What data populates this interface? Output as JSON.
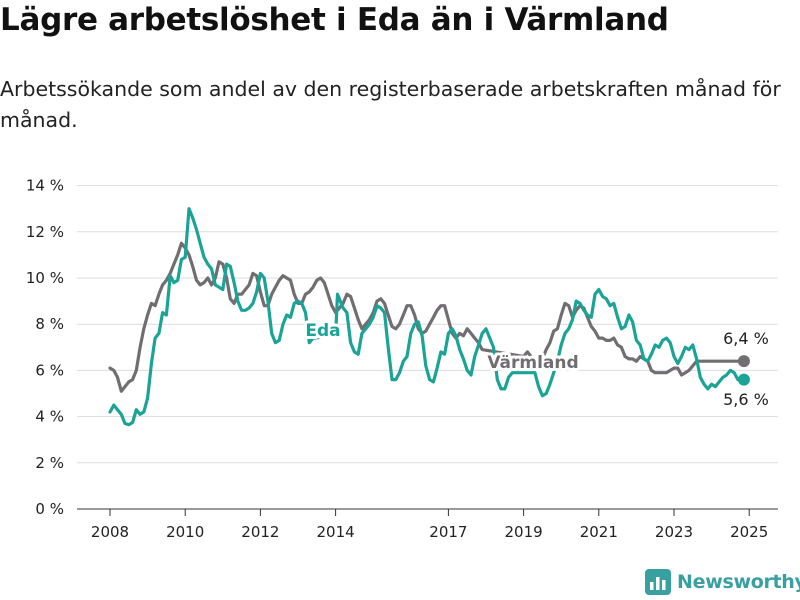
{
  "title": "Lägre arbetslöshet i Eda än i Värmland",
  "subtitle": "Arbetssökande som andel av den registerbaserade arbetskraften månad för månad.",
  "brand": "Newsworthy",
  "colors": {
    "eda": "#1aa397",
    "varmland": "#716e72",
    "grid": "#dddddd",
    "logo": "#39a0a2"
  },
  "chart_data": {
    "type": "line",
    "title": "Lägre arbetslöshet i Eda än i Värmland",
    "xlabel": "",
    "ylabel": "",
    "ylim": [
      0,
      14
    ],
    "xlim": [
      2008,
      2025.5
    ],
    "y_ticks": [
      "0 %",
      "2 %",
      "4 %",
      "6 %",
      "8 %",
      "10 %",
      "12 %",
      "14 %"
    ],
    "x_ticks": [
      "2008",
      "2010",
      "2012",
      "2014",
      "2017",
      "2019",
      "2021",
      "2023",
      "2025"
    ],
    "grid": true,
    "legend": "inline labels",
    "series": [
      {
        "name": "Eda",
        "label": "Eda",
        "end_label": "5,6 %",
        "points": [
          [
            2008.0,
            4.2
          ],
          [
            2008.1,
            4.5
          ],
          [
            2008.2,
            4.3
          ],
          [
            2008.3,
            4.1
          ],
          [
            2008.4,
            3.7
          ],
          [
            2008.5,
            3.65
          ],
          [
            2008.6,
            3.75
          ],
          [
            2008.7,
            4.3
          ],
          [
            2008.8,
            4.1
          ],
          [
            2008.9,
            4.2
          ],
          [
            2009.0,
            4.8
          ],
          [
            2009.1,
            6.3
          ],
          [
            2009.2,
            7.4
          ],
          [
            2009.3,
            7.6
          ],
          [
            2009.4,
            8.5
          ],
          [
            2009.5,
            8.4
          ],
          [
            2009.6,
            10.1
          ],
          [
            2009.7,
            9.8
          ],
          [
            2009.8,
            9.9
          ],
          [
            2009.9,
            10.8
          ],
          [
            2010.0,
            10.9
          ],
          [
            2010.1,
            13.0
          ],
          [
            2010.2,
            12.6
          ],
          [
            2010.3,
            12.1
          ],
          [
            2010.4,
            11.5
          ],
          [
            2010.5,
            10.9
          ],
          [
            2010.6,
            10.6
          ],
          [
            2010.7,
            10.4
          ],
          [
            2010.8,
            9.7
          ],
          [
            2010.9,
            9.6
          ],
          [
            2011.0,
            9.5
          ],
          [
            2011.1,
            10.6
          ],
          [
            2011.2,
            10.5
          ],
          [
            2011.3,
            9.8
          ],
          [
            2011.4,
            9.0
          ],
          [
            2011.5,
            8.6
          ],
          [
            2011.6,
            8.6
          ],
          [
            2011.7,
            8.7
          ],
          [
            2011.8,
            8.9
          ],
          [
            2011.9,
            9.4
          ],
          [
            2012.0,
            10.2
          ],
          [
            2012.1,
            10.0
          ],
          [
            2012.2,
            9.0
          ],
          [
            2012.3,
            7.6
          ],
          [
            2012.4,
            7.2
          ],
          [
            2012.5,
            7.3
          ],
          [
            2012.6,
            8.0
          ],
          [
            2012.7,
            8.4
          ],
          [
            2012.8,
            8.3
          ],
          [
            2012.9,
            8.9
          ],
          [
            2013.0,
            9.0
          ],
          [
            2013.1,
            8.9
          ],
          [
            2013.2,
            8.5
          ],
          [
            2013.3,
            7.2
          ],
          [
            2013.4,
            7.4
          ],
          [
            2014.0,
            7.5
          ],
          [
            2014.05,
            9.3
          ],
          [
            2014.2,
            8.7
          ],
          [
            2014.3,
            8.5
          ],
          [
            2014.4,
            7.2
          ],
          [
            2014.5,
            6.8
          ],
          [
            2014.6,
            6.7
          ],
          [
            2014.7,
            7.6
          ],
          [
            2014.8,
            7.8
          ],
          [
            2014.9,
            8.0
          ],
          [
            2015.0,
            8.3
          ],
          [
            2015.1,
            8.8
          ],
          [
            2015.2,
            8.7
          ],
          [
            2015.3,
            8.5
          ],
          [
            2015.4,
            7.0
          ],
          [
            2015.5,
            5.6
          ],
          [
            2015.6,
            5.6
          ],
          [
            2015.7,
            5.9
          ],
          [
            2015.8,
            6.4
          ],
          [
            2015.9,
            6.6
          ],
          [
            2016.0,
            7.6
          ],
          [
            2016.1,
            8.0
          ],
          [
            2016.2,
            8.1
          ],
          [
            2016.3,
            7.5
          ],
          [
            2016.4,
            6.2
          ],
          [
            2016.5,
            5.6
          ],
          [
            2016.6,
            5.5
          ],
          [
            2016.7,
            6.1
          ],
          [
            2016.8,
            6.8
          ],
          [
            2016.9,
            6.7
          ],
          [
            2017.0,
            7.6
          ],
          [
            2017.1,
            7.8
          ],
          [
            2017.2,
            7.5
          ],
          [
            2017.3,
            6.9
          ],
          [
            2017.4,
            6.5
          ],
          [
            2017.5,
            6.0
          ],
          [
            2017.6,
            5.8
          ],
          [
            2017.7,
            6.6
          ],
          [
            2017.8,
            7.1
          ],
          [
            2017.9,
            7.6
          ],
          [
            2018.0,
            7.8
          ],
          [
            2018.1,
            7.4
          ],
          [
            2018.2,
            7.0
          ],
          [
            2018.3,
            5.6
          ],
          [
            2018.4,
            5.2
          ],
          [
            2018.5,
            5.2
          ],
          [
            2018.6,
            5.7
          ],
          [
            2018.7,
            5.9
          ],
          [
            2019.3,
            5.9
          ],
          [
            2019.4,
            5.3
          ],
          [
            2019.5,
            4.9
          ],
          [
            2019.6,
            5.0
          ],
          [
            2019.7,
            5.4
          ],
          [
            2019.8,
            5.9
          ],
          [
            2019.9,
            6.4
          ],
          [
            2020.0,
            7.1
          ],
          [
            2020.1,
            7.6
          ],
          [
            2020.2,
            7.8
          ],
          [
            2020.3,
            8.2
          ],
          [
            2020.4,
            9.0
          ],
          [
            2020.5,
            8.9
          ],
          [
            2020.6,
            8.6
          ],
          [
            2020.7,
            8.4
          ],
          [
            2020.8,
            8.3
          ],
          [
            2020.9,
            9.3
          ],
          [
            2021.0,
            9.5
          ],
          [
            2021.1,
            9.2
          ],
          [
            2021.2,
            9.1
          ],
          [
            2021.3,
            8.8
          ],
          [
            2021.4,
            8.9
          ],
          [
            2021.5,
            8.3
          ],
          [
            2021.6,
            7.8
          ],
          [
            2021.7,
            7.9
          ],
          [
            2021.8,
            8.4
          ],
          [
            2021.9,
            8.1
          ],
          [
            2022.0,
            7.3
          ],
          [
            2022.1,
            7.1
          ],
          [
            2022.2,
            6.5
          ],
          [
            2022.3,
            6.4
          ],
          [
            2022.4,
            6.7
          ],
          [
            2022.5,
            7.1
          ],
          [
            2022.6,
            7.0
          ],
          [
            2022.7,
            7.3
          ],
          [
            2022.8,
            7.4
          ],
          [
            2022.9,
            7.2
          ],
          [
            2023.0,
            6.6
          ],
          [
            2023.1,
            6.3
          ],
          [
            2023.2,
            6.6
          ],
          [
            2023.3,
            7.0
          ],
          [
            2023.4,
            6.9
          ],
          [
            2023.5,
            7.1
          ],
          [
            2023.6,
            6.5
          ],
          [
            2023.7,
            5.7
          ],
          [
            2023.8,
            5.4
          ],
          [
            2023.9,
            5.2
          ],
          [
            2024.0,
            5.4
          ],
          [
            2024.1,
            5.3
          ],
          [
            2024.2,
            5.5
          ],
          [
            2024.3,
            5.7
          ],
          [
            2024.4,
            5.8
          ],
          [
            2024.5,
            6.0
          ],
          [
            2024.6,
            5.9
          ],
          [
            2024.7,
            5.6
          ]
        ]
      },
      {
        "name": "Värmland",
        "label": "Värmland",
        "end_label": "6,4 %",
        "points": [
          [
            2008.0,
            6.1
          ],
          [
            2008.1,
            6.0
          ],
          [
            2008.2,
            5.7
          ],
          [
            2008.3,
            5.1
          ],
          [
            2008.4,
            5.3
          ],
          [
            2008.5,
            5.5
          ],
          [
            2008.6,
            5.6
          ],
          [
            2008.7,
            6.0
          ],
          [
            2008.8,
            7.0
          ],
          [
            2008.9,
            7.8
          ],
          [
            2009.0,
            8.4
          ],
          [
            2009.1,
            8.9
          ],
          [
            2009.2,
            8.8
          ],
          [
            2009.3,
            9.3
          ],
          [
            2009.4,
            9.7
          ],
          [
            2009.5,
            9.9
          ],
          [
            2009.6,
            10.2
          ],
          [
            2009.7,
            10.6
          ],
          [
            2009.8,
            11.0
          ],
          [
            2009.9,
            11.5
          ],
          [
            2010.0,
            11.3
          ],
          [
            2010.1,
            11.0
          ],
          [
            2010.2,
            10.5
          ],
          [
            2010.3,
            9.9
          ],
          [
            2010.4,
            9.7
          ],
          [
            2010.5,
            9.8
          ],
          [
            2010.6,
            10.0
          ],
          [
            2010.7,
            9.7
          ],
          [
            2010.8,
            10.0
          ],
          [
            2010.9,
            10.7
          ],
          [
            2011.0,
            10.6
          ],
          [
            2011.1,
            10.0
          ],
          [
            2011.2,
            9.1
          ],
          [
            2011.3,
            8.9
          ],
          [
            2011.4,
            9.3
          ],
          [
            2011.5,
            9.3
          ],
          [
            2011.6,
            9.5
          ],
          [
            2011.7,
            9.7
          ],
          [
            2011.8,
            10.2
          ],
          [
            2011.9,
            10.1
          ],
          [
            2012.0,
            9.4
          ],
          [
            2012.1,
            8.8
          ],
          [
            2012.2,
            8.8
          ],
          [
            2012.3,
            9.3
          ],
          [
            2012.4,
            9.6
          ],
          [
            2012.5,
            9.9
          ],
          [
            2012.6,
            10.1
          ],
          [
            2012.7,
            10.0
          ],
          [
            2012.8,
            9.9
          ],
          [
            2012.9,
            9.3
          ],
          [
            2013.0,
            8.9
          ],
          [
            2013.1,
            8.9
          ],
          [
            2013.2,
            9.3
          ],
          [
            2013.3,
            9.4
          ],
          [
            2013.4,
            9.6
          ],
          [
            2013.5,
            9.9
          ],
          [
            2013.6,
            10.0
          ],
          [
            2013.7,
            9.8
          ],
          [
            2013.8,
            9.3
          ],
          [
            2013.9,
            8.8
          ],
          [
            2014.0,
            8.5
          ],
          [
            2014.1,
            8.7
          ],
          [
            2014.2,
            8.9
          ],
          [
            2014.3,
            9.3
          ],
          [
            2014.4,
            9.2
          ],
          [
            2014.5,
            8.7
          ],
          [
            2014.6,
            8.2
          ],
          [
            2014.7,
            7.8
          ],
          [
            2014.8,
            8.0
          ],
          [
            2014.9,
            8.2
          ],
          [
            2015.0,
            8.5
          ],
          [
            2015.1,
            9.0
          ],
          [
            2015.2,
            9.1
          ],
          [
            2015.3,
            8.9
          ],
          [
            2015.4,
            8.4
          ],
          [
            2015.5,
            7.9
          ],
          [
            2015.6,
            7.8
          ],
          [
            2015.7,
            8.0
          ],
          [
            2015.8,
            8.4
          ],
          [
            2015.9,
            8.8
          ],
          [
            2016.0,
            8.8
          ],
          [
            2016.1,
            8.4
          ],
          [
            2016.2,
            7.8
          ],
          [
            2016.3,
            7.6
          ],
          [
            2016.4,
            7.7
          ],
          [
            2016.5,
            8.0
          ],
          [
            2016.6,
            8.3
          ],
          [
            2016.7,
            8.6
          ],
          [
            2016.8,
            8.8
          ],
          [
            2016.9,
            8.8
          ],
          [
            2017.0,
            8.2
          ],
          [
            2017.1,
            7.6
          ],
          [
            2017.2,
            7.4
          ],
          [
            2017.3,
            7.6
          ],
          [
            2017.4,
            7.5
          ],
          [
            2017.5,
            7.8
          ],
          [
            2017.6,
            7.6
          ],
          [
            2017.7,
            7.4
          ],
          [
            2017.8,
            7.2
          ],
          [
            2017.9,
            6.9
          ],
          [
            2019.0,
            6.6
          ],
          [
            2019.1,
            6.8
          ],
          [
            2019.2,
            6.6
          ],
          [
            2019.3,
            6.3
          ],
          [
            2019.4,
            6.3
          ],
          [
            2019.5,
            6.5
          ],
          [
            2019.6,
            6.9
          ],
          [
            2019.7,
            7.2
          ],
          [
            2019.8,
            7.7
          ],
          [
            2019.9,
            7.8
          ],
          [
            2020.0,
            8.4
          ],
          [
            2020.1,
            8.9
          ],
          [
            2020.2,
            8.8
          ],
          [
            2020.3,
            8.3
          ],
          [
            2020.4,
            8.6
          ],
          [
            2020.5,
            8.8
          ],
          [
            2020.6,
            8.7
          ],
          [
            2020.7,
            8.3
          ],
          [
            2020.8,
            7.9
          ],
          [
            2020.9,
            7.7
          ],
          [
            2021.0,
            7.4
          ],
          [
            2021.1,
            7.4
          ],
          [
            2021.2,
            7.3
          ],
          [
            2021.3,
            7.3
          ],
          [
            2021.4,
            7.4
          ],
          [
            2021.5,
            7.1
          ],
          [
            2021.6,
            7.0
          ],
          [
            2021.7,
            6.6
          ],
          [
            2021.8,
            6.5
          ],
          [
            2021.9,
            6.5
          ],
          [
            2022.0,
            6.4
          ],
          [
            2022.1,
            6.6
          ],
          [
            2022.2,
            6.5
          ],
          [
            2022.3,
            6.4
          ],
          [
            2022.4,
            6.0
          ],
          [
            2022.5,
            5.9
          ],
          [
            2022.6,
            5.9
          ],
          [
            2022.7,
            5.9
          ],
          [
            2022.8,
            5.9
          ],
          [
            2022.9,
            6.0
          ],
          [
            2023.0,
            6.1
          ],
          [
            2023.1,
            6.1
          ],
          [
            2023.2,
            5.8
          ],
          [
            2023.3,
            5.9
          ],
          [
            2023.4,
            6.0
          ],
          [
            2023.5,
            6.2
          ],
          [
            2023.6,
            6.4
          ],
          [
            2024.7,
            6.4
          ]
        ]
      }
    ]
  }
}
